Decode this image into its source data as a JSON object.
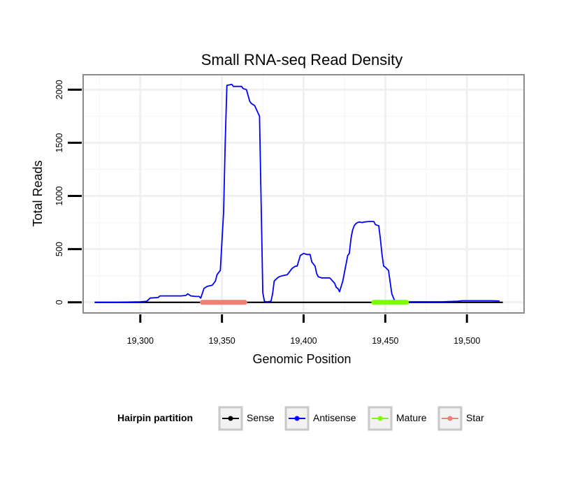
{
  "chart_data": {
    "type": "line",
    "title": "Small RNA-seq Read Density",
    "xlabel": "Genomic Position",
    "ylabel": "Total Reads",
    "xlim": [
      19265,
      19535
    ],
    "ylim": [
      -100,
      2140
    ],
    "x_ticks": [
      19300,
      19350,
      19400,
      19450,
      19500
    ],
    "x_tick_labels": [
      "19,300",
      "19,350",
      "19,400",
      "19,450",
      "19,500"
    ],
    "y_ticks": [
      0,
      500,
      1000,
      1500,
      2000
    ],
    "y_tick_labels": [
      "0",
      "500",
      "1000",
      "1500",
      "2000"
    ],
    "grid": true,
    "legend": {
      "title": "Hairpin partition",
      "position": "bottom",
      "entries": [
        {
          "label": "Sense",
          "color": "#000000"
        },
        {
          "label": "Antisense",
          "color": "#0000ff"
        },
        {
          "label": "Mature",
          "color": "#7cfc00"
        },
        {
          "label": "Star",
          "color": "#f08070"
        }
      ]
    },
    "series": [
      {
        "name": "Sense",
        "color": "#000000",
        "x": [
          19272,
          19522
        ],
        "y": [
          0,
          0
        ]
      },
      {
        "name": "Antisense",
        "color": "#0000ff",
        "x": [
          19272,
          19285,
          19300,
          19304,
          19306,
          19311,
          19312,
          19325,
          19328,
          19329,
          19331,
          19334,
          19336,
          19337,
          19339,
          19341,
          19344,
          19345,
          19346,
          19347,
          19349,
          19351,
          19352,
          19353,
          19356,
          19357,
          19362,
          19363,
          19365,
          19367,
          19368,
          19370,
          19373,
          19375,
          19376,
          19377,
          19378,
          19380,
          19381,
          19382,
          19384,
          19385,
          19387,
          19390,
          19391,
          19393,
          19394,
          19395,
          19396,
          19398,
          19400,
          19401,
          19402,
          19404,
          19405,
          19407,
          19408,
          19409,
          19410,
          19411,
          19414,
          19416,
          19419,
          19420,
          19421,
          19422,
          19424,
          19427,
          19428,
          19429,
          19430,
          19431,
          19432,
          19433,
          19434,
          19436,
          19437,
          19440,
          19443,
          19444,
          19446,
          19447,
          19448,
          19449,
          19450,
          19452,
          19454,
          19456,
          19458,
          19459,
          19460,
          19461,
          19462,
          19466,
          19470,
          19472,
          19485,
          19494,
          19497,
          19500,
          19505,
          19510,
          19515,
          19520
        ],
        "y": [
          0,
          0,
          5,
          10,
          40,
          45,
          60,
          60,
          65,
          80,
          60,
          55,
          55,
          40,
          130,
          150,
          160,
          180,
          200,
          260,
          300,
          850,
          1500,
          2040,
          2050,
          2030,
          2030,
          2010,
          2000,
          1890,
          1870,
          1850,
          1750,
          90,
          10,
          5,
          5,
          10,
          80,
          200,
          230,
          240,
          250,
          260,
          280,
          320,
          330,
          340,
          340,
          440,
          460,
          455,
          450,
          450,
          380,
          340,
          270,
          240,
          235,
          230,
          230,
          230,
          180,
          140,
          130,
          100,
          200,
          440,
          460,
          600,
          680,
          720,
          740,
          750,
          755,
          750,
          755,
          760,
          760,
          730,
          720,
          600,
          450,
          340,
          330,
          300,
          80,
          5,
          10,
          8,
          5,
          5,
          5,
          5,
          5,
          5,
          5,
          10,
          15,
          15,
          15,
          15,
          15,
          12
        ]
      }
    ],
    "segments": [
      {
        "name": "Star",
        "color": "#f08070",
        "x_start": 19338,
        "x_end": 19364,
        "y": 0
      },
      {
        "name": "Mature",
        "color": "#7cfc00",
        "x_start": 19443,
        "x_end": 19463,
        "y": 0
      }
    ]
  }
}
